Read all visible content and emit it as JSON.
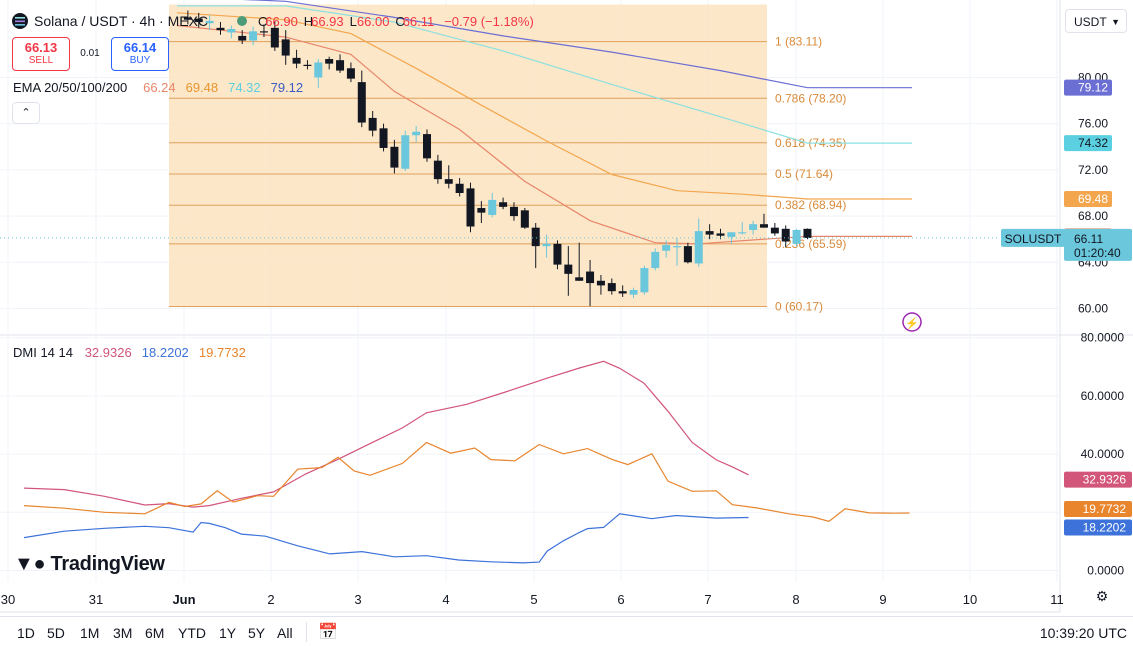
{
  "header": {
    "symbol": "Solana / USDT · 4h · MEXC",
    "open_label": "O",
    "open": "66.90",
    "high_label": "H",
    "high": "66.93",
    "low_label": "L",
    "low": "66.00",
    "close_label": "C",
    "close": "66.11",
    "change": "−0.79 (−1.18%)",
    "currency": "USDT"
  },
  "trade": {
    "sell_price": "66.13",
    "sell_label": "SELL",
    "spread": "0.01",
    "buy_price": "66.14",
    "buy_label": "BUY"
  },
  "ema_legend": {
    "label": "EMA 20/50/100/200",
    "v20": "66.24",
    "v50": "69.48",
    "v100": "74.32",
    "v200": "79.12"
  },
  "dmi_legend": {
    "label": "DMI 14 14",
    "adx": "32.9326",
    "plus_di": "18.2202",
    "minus_di": "19.7732"
  },
  "colors": {
    "up": "#6ac7dc",
    "down": "#131722",
    "ema20": "#e8866a",
    "ema50": "#f3a64d",
    "ema100": "#8ce0e0",
    "ema200": "#6b6fd4",
    "adx": "#d2557a",
    "plus_di": "#3c72d9",
    "minus_di": "#e8852d",
    "fib_fill": "#fbe3bf",
    "fib_line": "#e0a05a"
  },
  "chart_data": [
    {
      "type": "candlestick",
      "title": "Solana / USDT · 4h · MEXC",
      "x_ticks": [
        "30",
        "31",
        "Jun",
        "2",
        "3",
        "4",
        "5",
        "6",
        "7",
        "8",
        "9",
        "10",
        "11"
      ],
      "y_ticks": [
        "60.00",
        "64.00",
        "68.00",
        "72.00",
        "76.00",
        "80.00"
      ],
      "ylim": [
        58.3,
        86.5
      ],
      "candles": [
        {
          "i": 1,
          "o": 85.2,
          "h": 85.8,
          "l": 84.6,
          "c": 85.0
        },
        {
          "i": 2,
          "o": 85.1,
          "h": 85.6,
          "l": 84.3,
          "c": 84.8
        },
        {
          "i": 3,
          "o": 84.7,
          "h": 85.4,
          "l": 84.1,
          "c": 84.9
        },
        {
          "i": 4,
          "o": 84.3,
          "h": 84.8,
          "l": 83.7,
          "c": 84.1
        },
        {
          "i": 5,
          "o": 83.9,
          "h": 84.5,
          "l": 83.4,
          "c": 84.2
        },
        {
          "i": 6,
          "o": 83.6,
          "h": 84.1,
          "l": 82.9,
          "c": 83.2
        },
        {
          "i": 7,
          "o": 83.2,
          "h": 84.4,
          "l": 82.8,
          "c": 84.0
        },
        {
          "i": 8,
          "o": 84.0,
          "h": 84.6,
          "l": 83.5,
          "c": 83.9
        },
        {
          "i": 9,
          "o": 84.3,
          "h": 84.9,
          "l": 82.3,
          "c": 82.6
        },
        {
          "i": 10,
          "o": 83.3,
          "h": 84.1,
          "l": 81.1,
          "c": 81.9
        },
        {
          "i": 11,
          "o": 81.7,
          "h": 82.4,
          "l": 80.8,
          "c": 81.2
        },
        {
          "i": 12,
          "o": 81.1,
          "h": 81.5,
          "l": 80.7,
          "c": 81.0
        },
        {
          "i": 13,
          "o": 80.0,
          "h": 81.6,
          "l": 79.1,
          "c": 81.3
        },
        {
          "i": 14,
          "o": 81.6,
          "h": 81.8,
          "l": 80.7,
          "c": 81.2
        },
        {
          "i": 15,
          "o": 81.5,
          "h": 82.0,
          "l": 80.4,
          "c": 80.6
        },
        {
          "i": 16,
          "o": 80.8,
          "h": 81.3,
          "l": 79.6,
          "c": 79.9
        },
        {
          "i": 17,
          "o": 79.6,
          "h": 80.6,
          "l": 75.7,
          "c": 76.1
        },
        {
          "i": 18,
          "o": 76.5,
          "h": 77.1,
          "l": 74.9,
          "c": 75.4
        },
        {
          "i": 19,
          "o": 75.6,
          "h": 76.0,
          "l": 73.6,
          "c": 73.9
        },
        {
          "i": 20,
          "o": 74.0,
          "h": 74.6,
          "l": 71.7,
          "c": 72.2
        },
        {
          "i": 21,
          "o": 72.1,
          "h": 75.4,
          "l": 71.9,
          "c": 75.0
        },
        {
          "i": 22,
          "o": 75.0,
          "h": 75.8,
          "l": 74.4,
          "c": 75.3
        },
        {
          "i": 23,
          "o": 75.1,
          "h": 75.5,
          "l": 72.7,
          "c": 73.0
        },
        {
          "i": 24,
          "o": 72.8,
          "h": 73.3,
          "l": 70.8,
          "c": 71.2
        },
        {
          "i": 25,
          "o": 71.2,
          "h": 72.4,
          "l": 70.4,
          "c": 70.8
        },
        {
          "i": 26,
          "o": 70.8,
          "h": 71.3,
          "l": 69.7,
          "c": 70.0
        },
        {
          "i": 27,
          "o": 70.4,
          "h": 70.9,
          "l": 66.6,
          "c": 67.1
        },
        {
          "i": 28,
          "o": 68.7,
          "h": 69.3,
          "l": 67.4,
          "c": 68.3
        },
        {
          "i": 29,
          "o": 68.1,
          "h": 70.0,
          "l": 67.9,
          "c": 69.4
        },
        {
          "i": 30,
          "o": 69.2,
          "h": 69.6,
          "l": 68.6,
          "c": 68.8
        },
        {
          "i": 31,
          "o": 68.8,
          "h": 69.2,
          "l": 67.6,
          "c": 68.0
        },
        {
          "i": 32,
          "o": 68.5,
          "h": 68.7,
          "l": 66.9,
          "c": 67.0
        },
        {
          "i": 33,
          "o": 67.0,
          "h": 67.4,
          "l": 63.5,
          "c": 65.4
        },
        {
          "i": 34,
          "o": 65.4,
          "h": 66.4,
          "l": 64.4,
          "c": 65.6
        },
        {
          "i": 35,
          "o": 65.6,
          "h": 65.9,
          "l": 63.4,
          "c": 63.8
        },
        {
          "i": 36,
          "o": 63.8,
          "h": 65.4,
          "l": 61.1,
          "c": 63.0
        },
        {
          "i": 37,
          "o": 62.7,
          "h": 65.7,
          "l": 62.4,
          "c": 62.4
        },
        {
          "i": 38,
          "o": 63.2,
          "h": 64.2,
          "l": 60.2,
          "c": 62.2
        },
        {
          "i": 39,
          "o": 62.4,
          "h": 62.9,
          "l": 61.2,
          "c": 62.0
        },
        {
          "i": 40,
          "o": 62.2,
          "h": 62.6,
          "l": 61.2,
          "c": 61.5
        },
        {
          "i": 41,
          "o": 61.5,
          "h": 62.0,
          "l": 61.0,
          "c": 61.3
        },
        {
          "i": 42,
          "o": 61.2,
          "h": 61.8,
          "l": 60.9,
          "c": 61.6
        },
        {
          "i": 43,
          "o": 61.4,
          "h": 63.7,
          "l": 61.2,
          "c": 63.5
        },
        {
          "i": 44,
          "o": 63.5,
          "h": 65.2,
          "l": 63.3,
          "c": 64.9
        },
        {
          "i": 45,
          "o": 65.0,
          "h": 65.9,
          "l": 64.4,
          "c": 65.5
        },
        {
          "i": 46,
          "o": 65.3,
          "h": 66.1,
          "l": 63.7,
          "c": 65.4
        },
        {
          "i": 47,
          "o": 65.4,
          "h": 65.7,
          "l": 63.9,
          "c": 64.0
        },
        {
          "i": 48,
          "o": 63.9,
          "h": 67.8,
          "l": 63.6,
          "c": 66.7
        },
        {
          "i": 49,
          "o": 66.7,
          "h": 67.3,
          "l": 66.0,
          "c": 66.4
        },
        {
          "i": 50,
          "o": 66.5,
          "h": 66.9,
          "l": 66.0,
          "c": 66.3
        },
        {
          "i": 51,
          "o": 66.2,
          "h": 66.6,
          "l": 65.6,
          "c": 66.6
        },
        {
          "i": 52,
          "o": 66.6,
          "h": 67.5,
          "l": 66.4,
          "c": 66.6
        },
        {
          "i": 53,
          "o": 66.8,
          "h": 67.6,
          "l": 66.4,
          "c": 67.3
        },
        {
          "i": 54,
          "o": 67.3,
          "h": 68.2,
          "l": 67.0,
          "c": 67.0
        },
        {
          "i": 55,
          "o": 67.0,
          "h": 67.4,
          "l": 66.3,
          "c": 66.5
        },
        {
          "i": 56,
          "o": 66.9,
          "h": 67.2,
          "l": 65.3,
          "c": 65.8
        },
        {
          "i": 57,
          "o": 65.6,
          "h": 66.9,
          "l": 65.4,
          "c": 66.8
        },
        {
          "i": 58,
          "o": 66.9,
          "h": 66.93,
          "l": 66.0,
          "c": 66.11
        }
      ],
      "ema_series": [
        {
          "name": "EMA 20",
          "key": "ema20",
          "points": [
            [
              0,
              84.5
            ],
            [
              10,
              83.5
            ],
            [
              16,
              82.0
            ],
            [
              20,
              78.8
            ],
            [
              26,
              75.5
            ],
            [
              32,
              71.0
            ],
            [
              38,
              67.6
            ],
            [
              44,
              65.7
            ],
            [
              48,
              65.6
            ],
            [
              54,
              66.0
            ],
            [
              58,
              66.24
            ]
          ]
        },
        {
          "name": "EMA 50",
          "key": "ema50",
          "points": [
            [
              0,
              85.6
            ],
            [
              10,
              85.0
            ],
            [
              16,
              83.8
            ],
            [
              22,
              80.8
            ],
            [
              28,
              77.6
            ],
            [
              34,
              74.5
            ],
            [
              40,
              71.6
            ],
            [
              46,
              70.2
            ],
            [
              52,
              69.9
            ],
            [
              58,
              69.48
            ]
          ]
        },
        {
          "name": "EMA 100",
          "key": "ema100",
          "points": [
            [
              0,
              86.2
            ],
            [
              10,
              86.2
            ],
            [
              20,
              84.8
            ],
            [
              30,
              82.3
            ],
            [
              40,
              79.4
            ],
            [
              50,
              76.6
            ],
            [
              58,
              74.32
            ]
          ]
        },
        {
          "name": "EMA 200",
          "key": "ema200",
          "points": [
            [
              0,
              87.0
            ],
            [
              10,
              86.6
            ],
            [
              20,
              85.2
            ],
            [
              30,
              83.6
            ],
            [
              40,
              82.2
            ],
            [
              50,
              80.6
            ],
            [
              58,
              79.12
            ]
          ]
        }
      ],
      "fibonacci": [
        {
          "ratio": "1",
          "price": 83.11,
          "label": "1 (83.11)"
        },
        {
          "ratio": "0.786",
          "price": 78.2,
          "label": "0.786 (78.20)"
        },
        {
          "ratio": "0.618",
          "price": 74.35,
          "label": "0.618 (74.35)"
        },
        {
          "ratio": "0.5",
          "price": 71.64,
          "label": "0.5 (71.64)"
        },
        {
          "ratio": "0.382",
          "price": 68.94,
          "label": "0.382 (68.94)"
        },
        {
          "ratio": "0.236",
          "price": 65.59,
          "label": "0.236 (65.59)"
        },
        {
          "ratio": "0",
          "price": 60.17,
          "label": "0 (60.17)"
        }
      ],
      "fibonacci_range": {
        "start_i": -1,
        "end_i": 58
      },
      "price_labels": [
        {
          "text": "79.12",
          "value": 79.12,
          "key": "ema200"
        },
        {
          "text": "74.32",
          "value": 74.32,
          "key": "ema100"
        },
        {
          "text": "69.48",
          "value": 69.48,
          "key": "ema50"
        },
        {
          "text": "66.24",
          "value": 66.24,
          "key": "ema20"
        }
      ],
      "last_price": {
        "symbol": "SOLUSDT",
        "value": 66.11,
        "text": "66.11",
        "countdown": "01:20:40"
      }
    },
    {
      "type": "line",
      "title": "DMI 14 14",
      "y_ticks": [
        "0.0000",
        "20.0000",
        "40.0000",
        "60.0000",
        "80.0000"
      ],
      "ylim": [
        -3,
        80
      ],
      "series": [
        {
          "name": "ADX",
          "key": "adx",
          "points": [
            [
              -20,
              28.3
            ],
            [
              -15,
              27.8
            ],
            [
              -10,
              25.5
            ],
            [
              -5,
              22.5
            ],
            [
              -2,
              23.0
            ],
            [
              1,
              21.8
            ],
            [
              3,
              22.3
            ],
            [
              7,
              24.8
            ],
            [
              11,
              27.0
            ],
            [
              15,
              33.2
            ],
            [
              19,
              38.2
            ],
            [
              23,
              43.6
            ],
            [
              27,
              49.0
            ],
            [
              30,
              54.2
            ],
            [
              35,
              57.1
            ],
            [
              40,
              61.5
            ],
            [
              45,
              66.1
            ],
            [
              49,
              69.6
            ],
            [
              52,
              71.9
            ],
            [
              54,
              69.5
            ],
            [
              57,
              64.4
            ],
            [
              60,
              54.7
            ],
            [
              63,
              44.0
            ],
            [
              66,
              38.0
            ],
            [
              68,
              35.6
            ],
            [
              70,
              32.9
            ]
          ]
        },
        {
          "name": "+DI",
          "key": "plus_di",
          "points": [
            [
              -20,
              11.3
            ],
            [
              -15,
              13.5
            ],
            [
              -10,
              14.5
            ],
            [
              -5,
              15.2
            ],
            [
              -2,
              14.7
            ],
            [
              1,
              13.2
            ],
            [
              2,
              16.5
            ],
            [
              3,
              16.2
            ],
            [
              5,
              14.7
            ],
            [
              7,
              12.5
            ],
            [
              10,
              11.8
            ],
            [
              14,
              8.5
            ],
            [
              18,
              5.7
            ],
            [
              22,
              6.5
            ],
            [
              26,
              4.7
            ],
            [
              30,
              5.1
            ],
            [
              34,
              3.6
            ],
            [
              38,
              3.0
            ],
            [
              42,
              2.6
            ],
            [
              44,
              2.9
            ],
            [
              45,
              6.7
            ],
            [
              47,
              10.2
            ],
            [
              49,
              13.1
            ],
            [
              50,
              14.4
            ],
            [
              52,
              14.8
            ],
            [
              54,
              19.5
            ],
            [
              58,
              17.8
            ],
            [
              61,
              18.9
            ],
            [
              66,
              18.0
            ],
            [
              70,
              18.2
            ]
          ]
        },
        {
          "name": "−DI",
          "key": "minus_di",
          "points": [
            [
              -20,
              22.3
            ],
            [
              -15,
              21.4
            ],
            [
              -10,
              20.0
            ],
            [
              -5,
              19.5
            ],
            [
              -2,
              23.4
            ],
            [
              0,
              22.0
            ],
            [
              2,
              22.9
            ],
            [
              4,
              27.4
            ],
            [
              6,
              23.5
            ],
            [
              9,
              25.7
            ],
            [
              11,
              25.5
            ],
            [
              14,
              34.8
            ],
            [
              17,
              35.4
            ],
            [
              19,
              38.9
            ],
            [
              21,
              34.2
            ],
            [
              23,
              32.7
            ],
            [
              27,
              36.8
            ],
            [
              30,
              44.0
            ],
            [
              33,
              40.3
            ],
            [
              36,
              42.1
            ],
            [
              38,
              38.1
            ],
            [
              41,
              37.7
            ],
            [
              44,
              43.3
            ],
            [
              47,
              40.1
            ],
            [
              50,
              41.9
            ],
            [
              53,
              38.2
            ],
            [
              55,
              36.4
            ],
            [
              58,
              40.1
            ],
            [
              60,
              30.7
            ],
            [
              63,
              27.2
            ],
            [
              66,
              27.4
            ],
            [
              68,
              22.6
            ],
            [
              71,
              21.5
            ],
            [
              75,
              19.5
            ],
            [
              78,
              18.4
            ],
            [
              80,
              16.9
            ],
            [
              82,
              21.2
            ],
            [
              85,
              19.8
            ],
            [
              88,
              19.7
            ],
            [
              90,
              19.77
            ]
          ]
        }
      ]
    }
  ],
  "bottom_toolbar": {
    "ranges": [
      "1D",
      "5D",
      "1M",
      "3M",
      "6M",
      "YTD",
      "1Y",
      "5Y",
      "All"
    ],
    "clock": "10:39:20 UTC"
  },
  "branding": {
    "logo_text": "TradingView"
  }
}
